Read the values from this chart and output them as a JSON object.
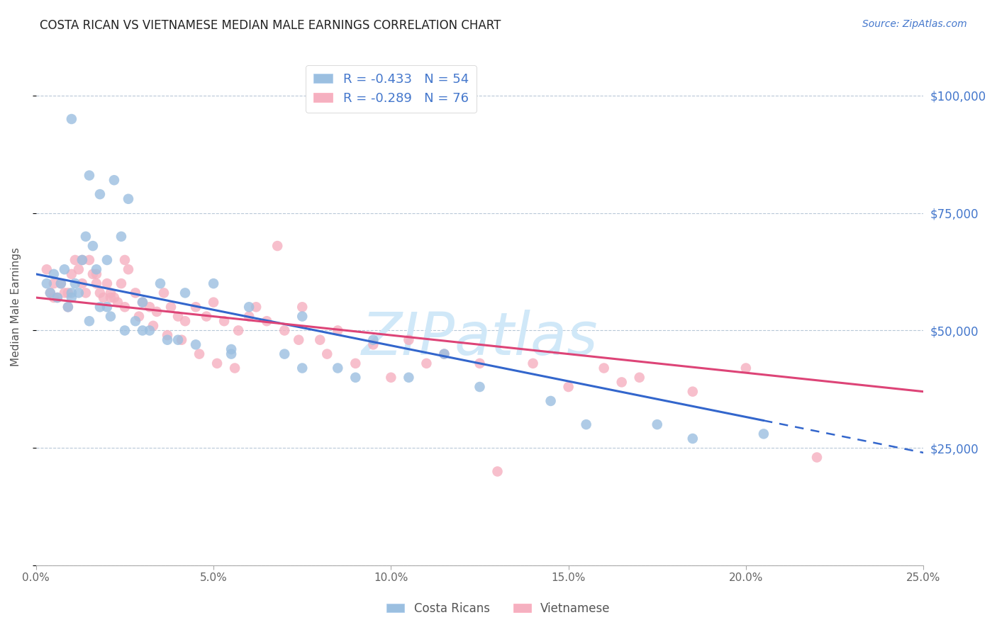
{
  "title": "COSTA RICAN VS VIETNAMESE MEDIAN MALE EARNINGS CORRELATION CHART",
  "source": "Source: ZipAtlas.com",
  "ylabel": "Median Male Earnings",
  "xlabel_ticks": [
    "0.0%",
    "5.0%",
    "10.0%",
    "15.0%",
    "20.0%",
    "25.0%"
  ],
  "xlabel_vals": [
    0.0,
    5.0,
    10.0,
    15.0,
    20.0,
    25.0
  ],
  "xlim": [
    0.0,
    25.0
  ],
  "ylim": [
    0,
    110000
  ],
  "yticks": [
    0,
    25000,
    50000,
    75000,
    100000
  ],
  "ytick_labels": [
    "",
    "$25,000",
    "$50,000",
    "$75,000",
    "$100,000"
  ],
  "background_color": "#ffffff",
  "grid_color": "#b8c8d8",
  "blue_color": "#9bbfe0",
  "pink_color": "#f5b0c0",
  "blue_line_color": "#3366cc",
  "pink_line_color": "#dd4477",
  "legend_blue_label": "R = -0.433   N = 54",
  "legend_pink_label": "R = -0.289   N = 76",
  "bottom_legend_blue": "Costa Ricans",
  "bottom_legend_pink": "Vietnamese",
  "title_color": "#333333",
  "axis_label_color": "#4477cc",
  "blue_trend_x0": 0.0,
  "blue_trend_y0": 62000,
  "blue_trend_x1": 25.0,
  "blue_trend_y1": 24000,
  "blue_solid_x_end": 20.5,
  "pink_trend_x0": 0.0,
  "pink_trend_y0": 57000,
  "pink_trend_x1": 25.0,
  "pink_trend_y1": 37000,
  "blue_scatter_x": [
    1.0,
    1.5,
    2.2,
    1.8,
    2.6,
    0.5,
    0.7,
    0.8,
    1.0,
    1.1,
    1.3,
    1.4,
    1.6,
    1.7,
    2.0,
    2.4,
    3.0,
    3.5,
    4.2,
    5.0,
    6.0,
    7.5,
    9.5,
    11.5,
    14.5,
    17.5,
    20.5,
    0.4,
    0.6,
    0.9,
    1.2,
    1.5,
    1.8,
    2.1,
    2.5,
    2.8,
    3.2,
    3.7,
    4.5,
    5.5,
    7.0,
    8.5,
    10.5,
    12.5,
    15.5,
    18.5,
    0.3,
    1.0,
    2.0,
    3.0,
    4.0,
    5.5,
    7.5,
    9.0
  ],
  "blue_scatter_y": [
    95000,
    83000,
    82000,
    79000,
    78000,
    62000,
    60000,
    63000,
    58000,
    60000,
    65000,
    70000,
    68000,
    63000,
    65000,
    70000,
    56000,
    60000,
    58000,
    60000,
    55000,
    53000,
    48000,
    45000,
    35000,
    30000,
    28000,
    58000,
    57000,
    55000,
    58000,
    52000,
    55000,
    53000,
    50000,
    52000,
    50000,
    48000,
    47000,
    45000,
    45000,
    42000,
    40000,
    38000,
    30000,
    27000,
    60000,
    57000,
    55000,
    50000,
    48000,
    46000,
    42000,
    40000
  ],
  "pink_scatter_x": [
    0.3,
    0.4,
    0.5,
    0.6,
    0.7,
    0.8,
    0.9,
    1.0,
    1.1,
    1.2,
    1.3,
    1.4,
    1.5,
    1.6,
    1.7,
    1.8,
    1.9,
    2.0,
    2.1,
    2.2,
    2.3,
    2.4,
    2.5,
    2.6,
    2.8,
    3.0,
    3.2,
    3.4,
    3.6,
    3.8,
    4.0,
    4.2,
    4.5,
    4.8,
    5.0,
    5.3,
    5.7,
    6.0,
    6.5,
    7.0,
    7.5,
    8.0,
    8.5,
    9.5,
    10.5,
    11.5,
    12.5,
    14.0,
    16.0,
    17.0,
    20.0,
    22.0,
    0.5,
    0.9,
    1.3,
    1.7,
    2.1,
    2.5,
    2.9,
    3.3,
    3.7,
    4.1,
    4.6,
    5.1,
    5.6,
    6.2,
    6.8,
    7.4,
    8.2,
    9.0,
    10.0,
    11.0,
    13.0,
    15.0,
    18.5,
    16.5
  ],
  "pink_scatter_y": [
    63000,
    58000,
    60000,
    57000,
    60000,
    58000,
    55000,
    62000,
    65000,
    63000,
    60000,
    58000,
    65000,
    62000,
    60000,
    58000,
    57000,
    60000,
    58000,
    57000,
    56000,
    60000,
    65000,
    63000,
    58000,
    56000,
    55000,
    54000,
    58000,
    55000,
    53000,
    52000,
    55000,
    53000,
    56000,
    52000,
    50000,
    53000,
    52000,
    50000,
    55000,
    48000,
    50000,
    47000,
    48000,
    45000,
    43000,
    43000,
    42000,
    40000,
    42000,
    23000,
    57000,
    58000,
    65000,
    62000,
    57000,
    55000,
    53000,
    51000,
    49000,
    48000,
    45000,
    43000,
    42000,
    55000,
    68000,
    48000,
    45000,
    43000,
    40000,
    43000,
    20000,
    38000,
    37000,
    39000
  ],
  "watermark": "ZIPatlas",
  "watermark_color": "#d0e8f8",
  "watermark_fontsize": 60
}
